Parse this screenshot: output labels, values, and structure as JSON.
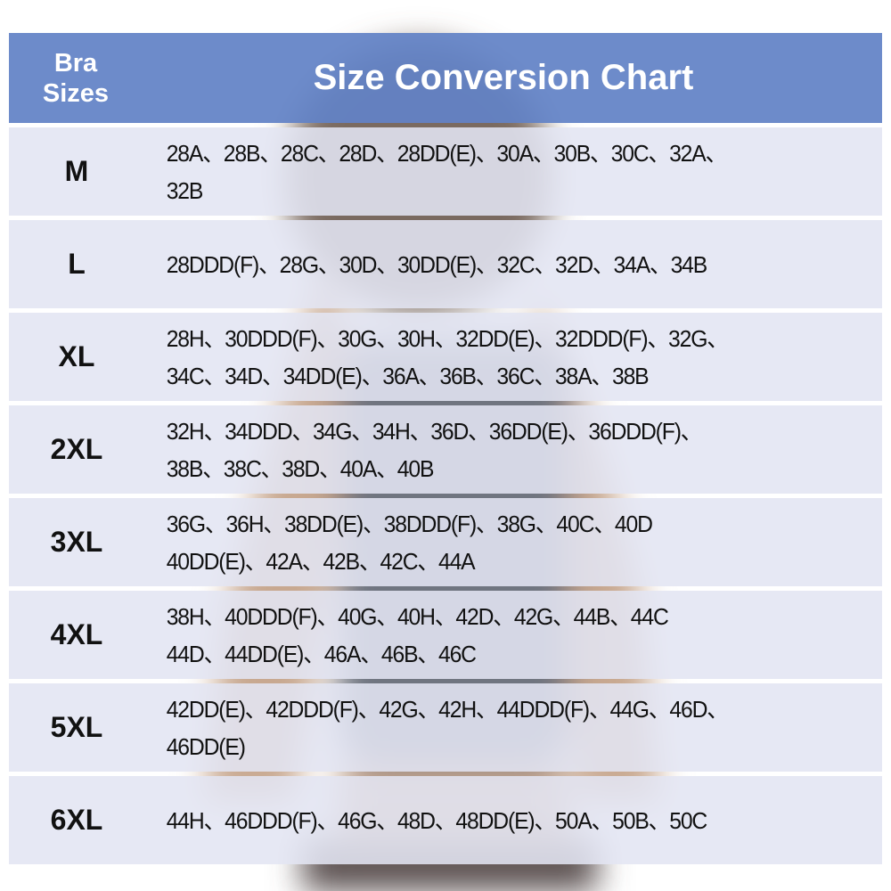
{
  "header": {
    "left_line1": "Bra",
    "left_line2": "Sizes",
    "title": "Size Conversion Chart"
  },
  "colors": {
    "header": "#6282c6",
    "row": "#e2e5f3"
  },
  "rows": [
    {
      "size": "M",
      "lines": [
        "28A、28B、28C、28D、28DD(E)、30A、30B、30C、32A、",
        "32B"
      ]
    },
    {
      "size": "L",
      "lines": [
        "28DDD(F)、28G、30D、30DD(E)、32C、32D、34A、34B"
      ]
    },
    {
      "size": "XL",
      "lines": [
        "28H、30DDD(F)、30G、30H、32DD(E)、32DDD(F)、32G、",
        "34C、34D、34DD(E)、36A、36B、36C、38A、38B"
      ]
    },
    {
      "size": "2XL",
      "lines": [
        "32H、34DDD、34G、34H、36D、36DD(E)、36DDD(F)、",
        "38B、38C、38D、40A、40B"
      ]
    },
    {
      "size": "3XL",
      "lines": [
        "36G、36H、38DD(E)、38DDD(F)、38G、40C、40D",
        "40DD(E)、42A、42B、42C、44A"
      ]
    },
    {
      "size": "4XL",
      "lines": [
        "38H、40DDD(F)、40G、40H、42D、42G、44B、44C",
        "44D、44DD(E)、46A、46B、46C"
      ]
    },
    {
      "size": "5XL",
      "lines": [
        "42DD(E)、42DDD(F)、42G、42H、44DDD(F)、44G、46D、",
        "46DD(E)"
      ]
    },
    {
      "size": "6XL",
      "lines": [
        "44H、46DDD(F)、46G、48D、48DD(E)、50A、50B、50C"
      ]
    }
  ]
}
